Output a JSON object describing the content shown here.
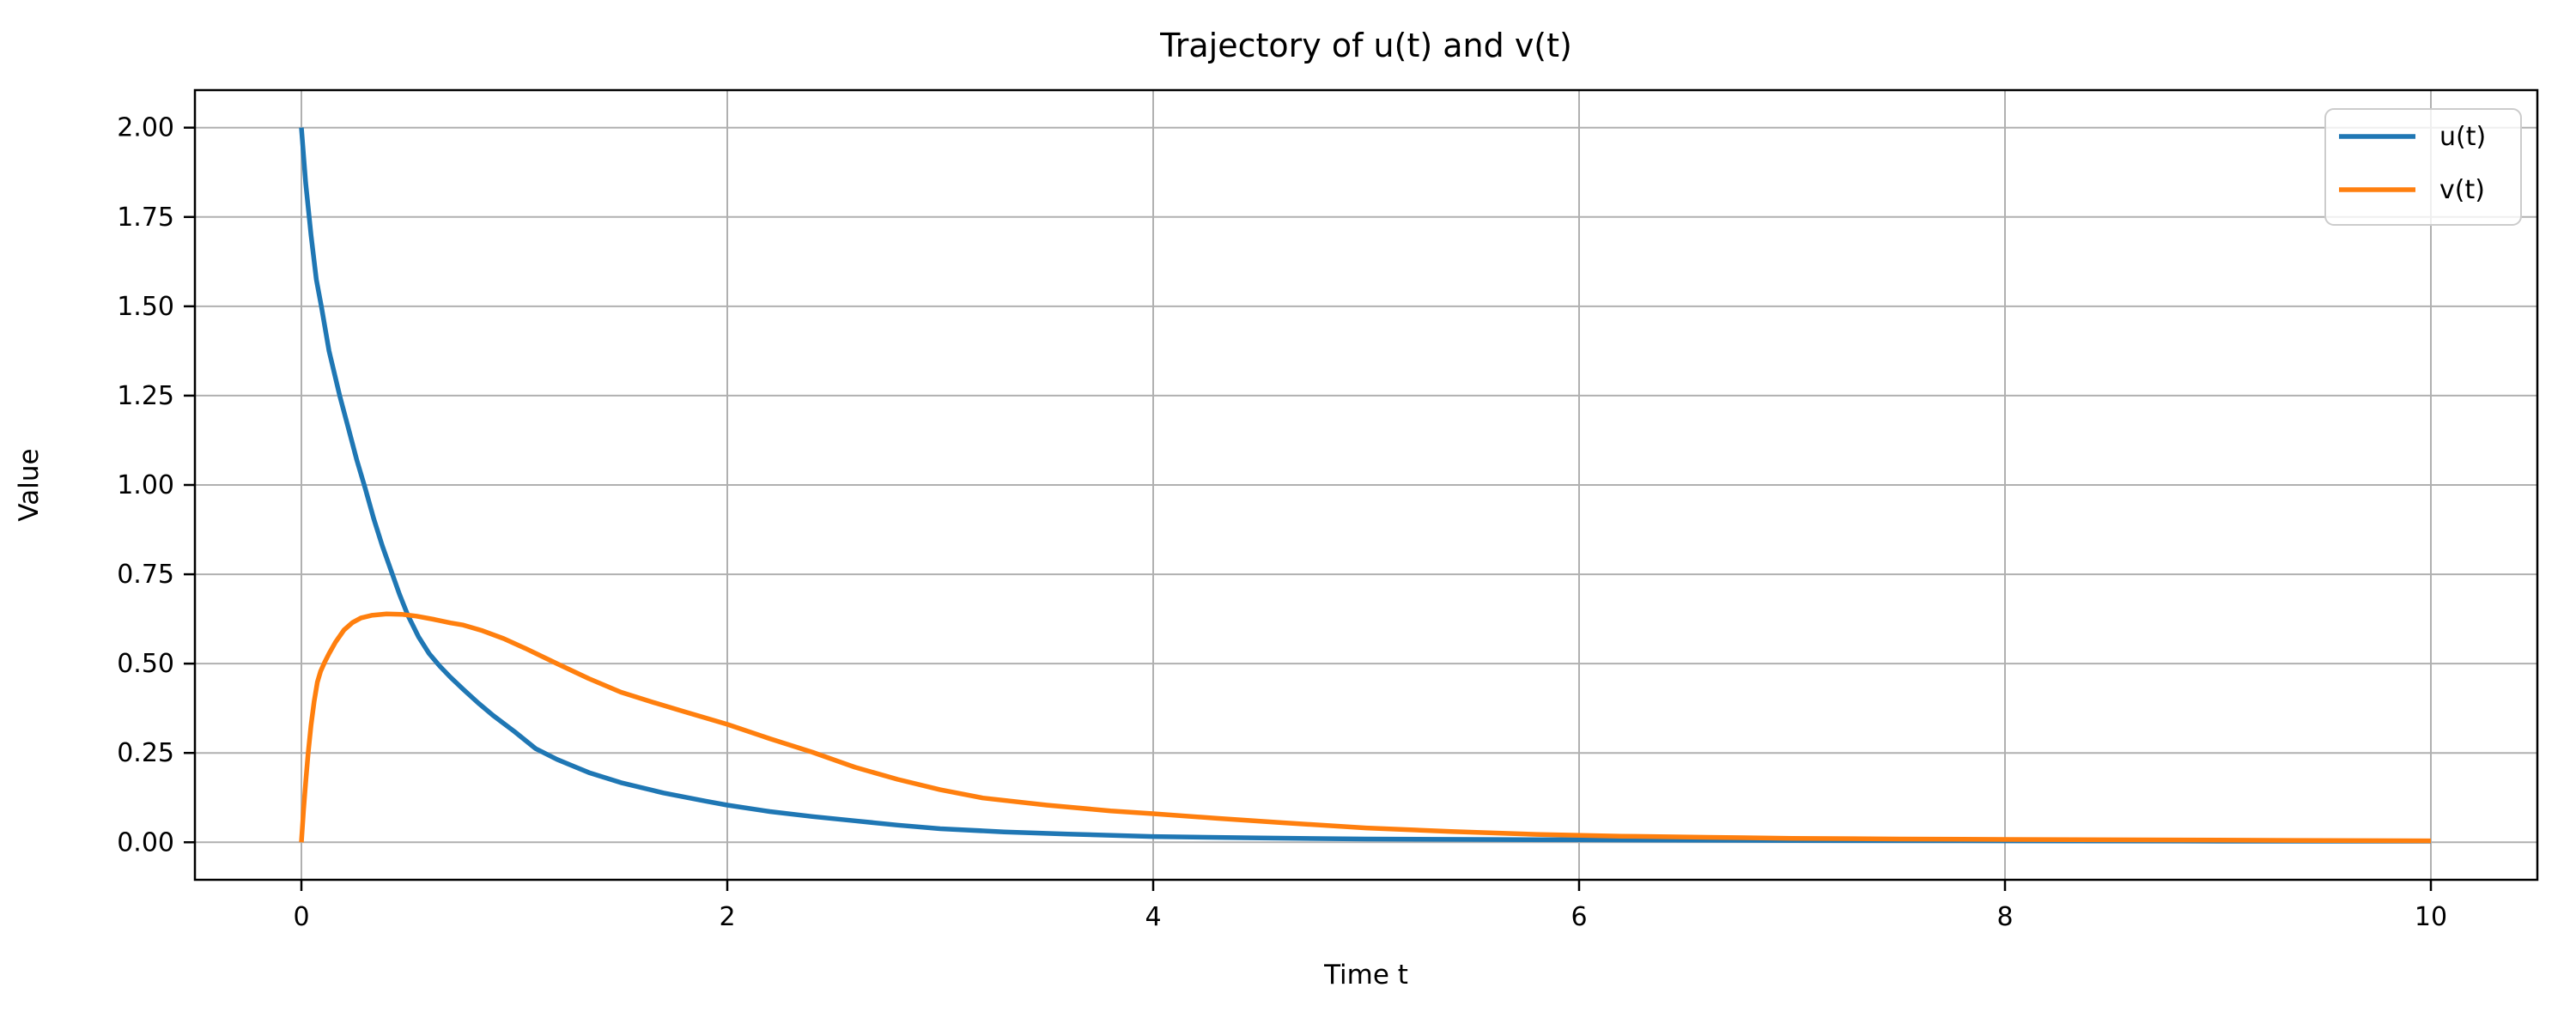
{
  "figure": {
    "background": "#ffffff"
  },
  "chart_data": {
    "type": "line",
    "title": "Trajectory of u(t) and v(t)",
    "xlabel": "Time t",
    "ylabel": "Value",
    "xlim": [
      -0.5,
      10.5
    ],
    "ylim": [
      -0.105,
      2.105
    ],
    "grid": true,
    "grid_color": "#b0b0b0",
    "spine_color": "#000000",
    "xticks": {
      "values": [
        0,
        2,
        4,
        6,
        8,
        10
      ],
      "labels": [
        "0",
        "2",
        "4",
        "6",
        "8",
        "10"
      ]
    },
    "yticks": {
      "values": [
        0.0,
        0.25,
        0.5,
        0.75,
        1.0,
        1.25,
        1.5,
        1.75,
        2.0
      ],
      "labels": [
        "0.00",
        "0.25",
        "0.50",
        "0.75",
        "1.00",
        "1.25",
        "1.50",
        "1.75",
        "2.00"
      ]
    },
    "legend": {
      "position": "upper right",
      "border_color": "#cccccc",
      "background": "rgba(255,255,255,0.8)",
      "entries": [
        {
          "label": "u(t)",
          "color": "#1f77b4"
        },
        {
          "label": "v(t)",
          "color": "#ff7f0e"
        }
      ]
    },
    "series": [
      {
        "name": "u(t)",
        "color": "#1f77b4",
        "linewidth": 5.5,
        "points": [
          [
            0.0,
            2.0
          ],
          [
            0.02,
            1.845
          ],
          [
            0.045,
            1.7
          ],
          [
            0.07,
            1.575
          ],
          [
            0.095,
            1.495
          ],
          [
            0.13,
            1.375
          ],
          [
            0.18,
            1.25
          ],
          [
            0.22,
            1.16
          ],
          [
            0.26,
            1.07
          ],
          [
            0.3,
            0.99
          ],
          [
            0.34,
            0.905
          ],
          [
            0.38,
            0.83
          ],
          [
            0.42,
            0.762
          ],
          [
            0.46,
            0.695
          ],
          [
            0.5,
            0.635
          ],
          [
            0.55,
            0.575
          ],
          [
            0.6,
            0.528
          ],
          [
            0.65,
            0.493
          ],
          [
            0.7,
            0.462
          ],
          [
            0.76,
            0.428
          ],
          [
            0.83,
            0.39
          ],
          [
            0.9,
            0.355
          ],
          [
            1.0,
            0.31
          ],
          [
            1.1,
            0.262
          ],
          [
            1.2,
            0.232
          ],
          [
            1.35,
            0.195
          ],
          [
            1.5,
            0.167
          ],
          [
            1.7,
            0.138
          ],
          [
            1.9,
            0.115
          ],
          [
            2.0,
            0.104
          ],
          [
            2.2,
            0.086
          ],
          [
            2.4,
            0.072
          ],
          [
            2.6,
            0.06
          ],
          [
            2.8,
            0.048
          ],
          [
            3.0,
            0.038
          ],
          [
            3.3,
            0.029
          ],
          [
            3.6,
            0.023
          ],
          [
            4.0,
            0.016
          ],
          [
            4.5,
            0.012
          ],
          [
            5.0,
            0.009
          ],
          [
            5.5,
            0.008
          ],
          [
            6.0,
            0.007
          ],
          [
            7.0,
            0.005
          ],
          [
            8.0,
            0.004
          ],
          [
            9.0,
            0.003
          ],
          [
            10.0,
            0.003
          ]
        ]
      },
      {
        "name": "v(t)",
        "color": "#ff7f0e",
        "linewidth": 5.5,
        "points": [
          [
            0.0,
            0.0
          ],
          [
            0.01,
            0.09
          ],
          [
            0.02,
            0.168
          ],
          [
            0.032,
            0.25
          ],
          [
            0.045,
            0.327
          ],
          [
            0.06,
            0.395
          ],
          [
            0.075,
            0.448
          ],
          [
            0.09,
            0.478
          ],
          [
            0.11,
            0.505
          ],
          [
            0.13,
            0.528
          ],
          [
            0.16,
            0.56
          ],
          [
            0.2,
            0.594
          ],
          [
            0.24,
            0.615
          ],
          [
            0.28,
            0.628
          ],
          [
            0.33,
            0.635
          ],
          [
            0.4,
            0.639
          ],
          [
            0.47,
            0.638
          ],
          [
            0.54,
            0.633
          ],
          [
            0.62,
            0.624
          ],
          [
            0.7,
            0.614
          ],
          [
            0.76,
            0.608
          ],
          [
            0.85,
            0.592
          ],
          [
            0.95,
            0.57
          ],
          [
            1.05,
            0.543
          ],
          [
            1.2,
            0.5
          ],
          [
            1.35,
            0.458
          ],
          [
            1.5,
            0.42
          ],
          [
            1.65,
            0.392
          ],
          [
            1.8,
            0.365
          ],
          [
            2.0,
            0.33
          ],
          [
            2.2,
            0.29
          ],
          [
            2.4,
            0.252
          ],
          [
            2.6,
            0.21
          ],
          [
            2.8,
            0.176
          ],
          [
            3.0,
            0.147
          ],
          [
            3.2,
            0.124
          ],
          [
            3.5,
            0.104
          ],
          [
            3.8,
            0.088
          ],
          [
            4.0,
            0.08
          ],
          [
            4.3,
            0.067
          ],
          [
            4.6,
            0.055
          ],
          [
            5.0,
            0.04
          ],
          [
            5.4,
            0.03
          ],
          [
            5.8,
            0.022
          ],
          [
            6.2,
            0.017
          ],
          [
            6.6,
            0.014
          ],
          [
            7.0,
            0.011
          ],
          [
            7.5,
            0.009
          ],
          [
            8.0,
            0.008
          ],
          [
            9.0,
            0.006
          ],
          [
            10.0,
            0.004
          ]
        ]
      }
    ]
  }
}
